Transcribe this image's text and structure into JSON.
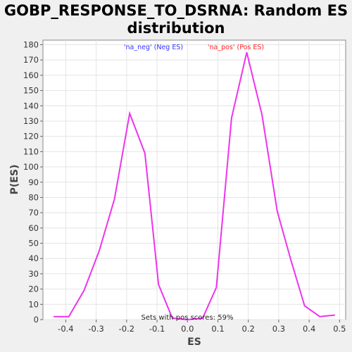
{
  "chart_data": {
    "type": "line",
    "title_line1": "GOBP_RESPONSE_TO_DSRNA: Random ES",
    "title_line2": "distribution",
    "xlabel": "ES",
    "ylabel": "P(ES)",
    "xlim": [
      -0.475,
      0.52
    ],
    "ylim": [
      0,
      183
    ],
    "xticks": [
      -0.4,
      -0.3,
      -0.2,
      -0.1,
      0.0,
      0.1,
      0.2,
      0.3,
      0.4,
      0.5
    ],
    "xtick_labels": [
      "-0.4",
      "-0.3",
      "-0.2",
      "-0.1",
      "0.0",
      "0.1",
      "0.2",
      "0.3",
      "0.4",
      "0.5"
    ],
    "yticks": [
      0,
      10,
      20,
      30,
      40,
      50,
      60,
      70,
      80,
      90,
      100,
      110,
      120,
      130,
      140,
      150,
      160,
      170,
      180
    ],
    "grid": true,
    "legend": [
      {
        "label": "'na_neg' (Neg ES)",
        "color": "#3333ff"
      },
      {
        "label": "'na_pos' (Pos ES)",
        "color": "#ff2222"
      }
    ],
    "annotation": "Sets with pos scores: 59%",
    "series": [
      {
        "color": "#ee33ee",
        "x": [
          -0.44,
          -0.39,
          -0.34,
          -0.29,
          -0.24,
          -0.19,
          -0.14,
          -0.095,
          -0.05,
          0.0,
          0.05,
          0.095,
          0.145,
          0.195,
          0.245,
          0.295,
          0.34,
          0.385,
          0.435,
          0.485
        ],
        "y": [
          2,
          2,
          19,
          45,
          79,
          135,
          109,
          23,
          1,
          0,
          1,
          21,
          132,
          175,
          134,
          71,
          39,
          9,
          2,
          3
        ]
      }
    ]
  }
}
